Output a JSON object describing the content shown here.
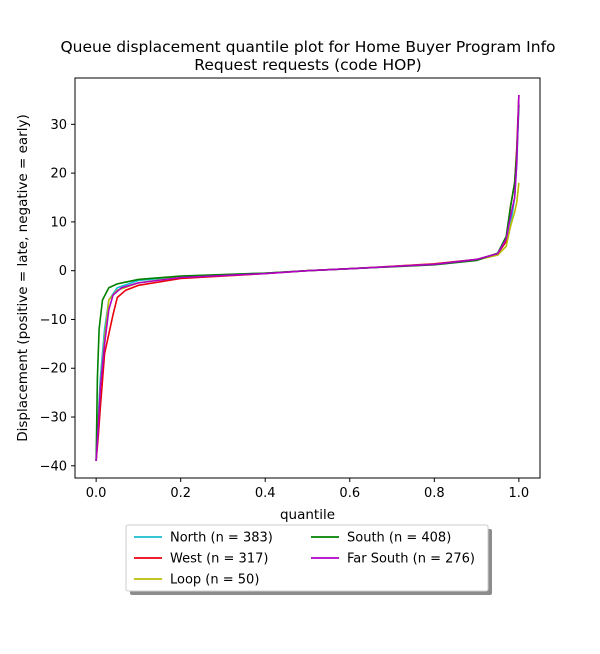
{
  "chart_data": {
    "type": "line",
    "title_lines": [
      "Queue displacement quantile plot for Home Buyer Program Info",
      "Request  requests (code HOP)"
    ],
    "xlabel": "quantile",
    "ylabel": "Displacement (positive = late, negative = early)",
    "xlim": [
      -0.05,
      1.05
    ],
    "ylim": [
      -42.5,
      39.5
    ],
    "xticks": [
      0.0,
      0.2,
      0.4,
      0.6,
      0.8,
      1.0
    ],
    "xtick_labels": [
      "0.0",
      "0.2",
      "0.4",
      "0.6",
      "0.8",
      "1.0"
    ],
    "yticks": [
      -40,
      -30,
      -20,
      -10,
      0,
      10,
      20,
      30
    ],
    "ytick_labels": [
      "−40",
      "−30",
      "−20",
      "−10",
      "0",
      "10",
      "20",
      "30"
    ],
    "grid": false,
    "legend_placement": "below plot, two columns",
    "series": [
      {
        "name": "North (n = 383)",
        "color": "#17becf",
        "points": [
          [
            0.0,
            -39
          ],
          [
            0.005,
            -30
          ],
          [
            0.01,
            -22
          ],
          [
            0.02,
            -12
          ],
          [
            0.03,
            -6
          ],
          [
            0.05,
            -3.5
          ],
          [
            0.1,
            -2
          ],
          [
            0.2,
            -1.2
          ],
          [
            0.4,
            -0.5
          ],
          [
            0.5,
            0
          ],
          [
            0.6,
            0.4
          ],
          [
            0.8,
            1.3
          ],
          [
            0.9,
            2.3
          ],
          [
            0.95,
            3.5
          ],
          [
            0.97,
            6
          ],
          [
            0.98,
            9
          ],
          [
            0.99,
            15
          ],
          [
            0.995,
            22
          ],
          [
            1.0,
            34
          ]
        ]
      },
      {
        "name": "West (n = 317)",
        "color": "#e8000b",
        "points": [
          [
            0.0,
            -39
          ],
          [
            0.005,
            -34
          ],
          [
            0.01,
            -28
          ],
          [
            0.02,
            -17
          ],
          [
            0.03,
            -13
          ],
          [
            0.04,
            -9
          ],
          [
            0.05,
            -5.5
          ],
          [
            0.07,
            -4
          ],
          [
            0.1,
            -3
          ],
          [
            0.2,
            -1.6
          ],
          [
            0.4,
            -0.6
          ],
          [
            0.5,
            0
          ],
          [
            0.6,
            0.4
          ],
          [
            0.8,
            1.4
          ],
          [
            0.9,
            2.3
          ],
          [
            0.95,
            3.5
          ],
          [
            0.97,
            6
          ],
          [
            0.98,
            13
          ],
          [
            0.99,
            18
          ],
          [
            0.995,
            25
          ],
          [
            1.0,
            36
          ]
        ]
      },
      {
        "name": "Loop (n = 50)",
        "color": "#bcbd00",
        "points": [
          [
            0.0,
            -39
          ],
          [
            0.005,
            -31
          ],
          [
            0.01,
            -24
          ],
          [
            0.02,
            -14
          ],
          [
            0.03,
            -6
          ],
          [
            0.05,
            -4
          ],
          [
            0.1,
            -2.5
          ],
          [
            0.2,
            -1.3
          ],
          [
            0.4,
            -0.5
          ],
          [
            0.5,
            0
          ],
          [
            0.6,
            0.4
          ],
          [
            0.8,
            1.3
          ],
          [
            0.9,
            2.2
          ],
          [
            0.95,
            3.2
          ],
          [
            0.97,
            5
          ],
          [
            0.98,
            9
          ],
          [
            0.99,
            12
          ],
          [
            0.995,
            14
          ],
          [
            1.0,
            18
          ]
        ]
      },
      {
        "name": "South (n = 408)",
        "color": "#008000",
        "points": [
          [
            0.0,
            -39
          ],
          [
            0.003,
            -22
          ],
          [
            0.007,
            -12
          ],
          [
            0.015,
            -6
          ],
          [
            0.03,
            -3.5
          ],
          [
            0.05,
            -2.7
          ],
          [
            0.1,
            -1.8
          ],
          [
            0.2,
            -1.1
          ],
          [
            0.4,
            -0.5
          ],
          [
            0.5,
            0
          ],
          [
            0.6,
            0.4
          ],
          [
            0.8,
            1.2
          ],
          [
            0.9,
            2.1
          ],
          [
            0.95,
            3.6
          ],
          [
            0.97,
            7
          ],
          [
            0.98,
            13
          ],
          [
            0.99,
            18
          ],
          [
            0.995,
            24
          ],
          [
            1.0,
            34
          ]
        ]
      },
      {
        "name": "Far South (n = 276)",
        "color": "#b000c8",
        "points": [
          [
            0.0,
            -39
          ],
          [
            0.005,
            -32
          ],
          [
            0.01,
            -24
          ],
          [
            0.02,
            -15
          ],
          [
            0.03,
            -8
          ],
          [
            0.04,
            -5
          ],
          [
            0.06,
            -3.5
          ],
          [
            0.1,
            -2.5
          ],
          [
            0.2,
            -1.4
          ],
          [
            0.4,
            -0.6
          ],
          [
            0.5,
            0
          ],
          [
            0.6,
            0.4
          ],
          [
            0.8,
            1.3
          ],
          [
            0.9,
            2.3
          ],
          [
            0.95,
            3.5
          ],
          [
            0.97,
            6.5
          ],
          [
            0.98,
            11
          ],
          [
            0.99,
            15
          ],
          [
            0.995,
            22
          ],
          [
            1.0,
            36
          ]
        ]
      }
    ],
    "legend_order": [
      0,
      1,
      2,
      3,
      4
    ]
  }
}
